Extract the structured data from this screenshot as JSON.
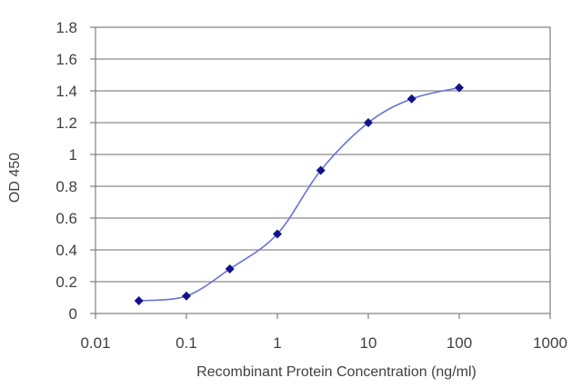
{
  "chart_data": {
    "type": "line",
    "title": "",
    "xlabel": "Recombinant Protein Concentration (ng/ml)",
    "ylabel": "OD 450",
    "x_scale": "log",
    "xlim": [
      0.01,
      1000
    ],
    "ylim": [
      0,
      1.8
    ],
    "x_ticks": [
      0.01,
      0.1,
      1,
      10,
      100,
      1000
    ],
    "x_tick_labels": [
      "0.01",
      "0.1",
      "1",
      "10",
      "100",
      "1000"
    ],
    "y_ticks": [
      0,
      0.2,
      0.4,
      0.6,
      0.8,
      1,
      1.2,
      1.4,
      1.6,
      1.8
    ],
    "y_tick_labels": [
      "0",
      "0.2",
      "0.4",
      "0.6",
      "0.8",
      "1",
      "1.2",
      "1.4",
      "1.6",
      "1.8"
    ],
    "grid": "horizontal",
    "legend": "none",
    "series": [
      {
        "x": [
          0.03,
          0.1,
          0.3,
          1,
          3,
          10,
          30,
          100
        ],
        "y": [
          0.08,
          0.11,
          0.28,
          0.5,
          0.9,
          1.2,
          1.35,
          1.42
        ]
      }
    ],
    "colors": {
      "line": "#6670d8",
      "marker": "#12128c",
      "grid": "#8a8a8a",
      "axis_text": "#404040"
    }
  }
}
